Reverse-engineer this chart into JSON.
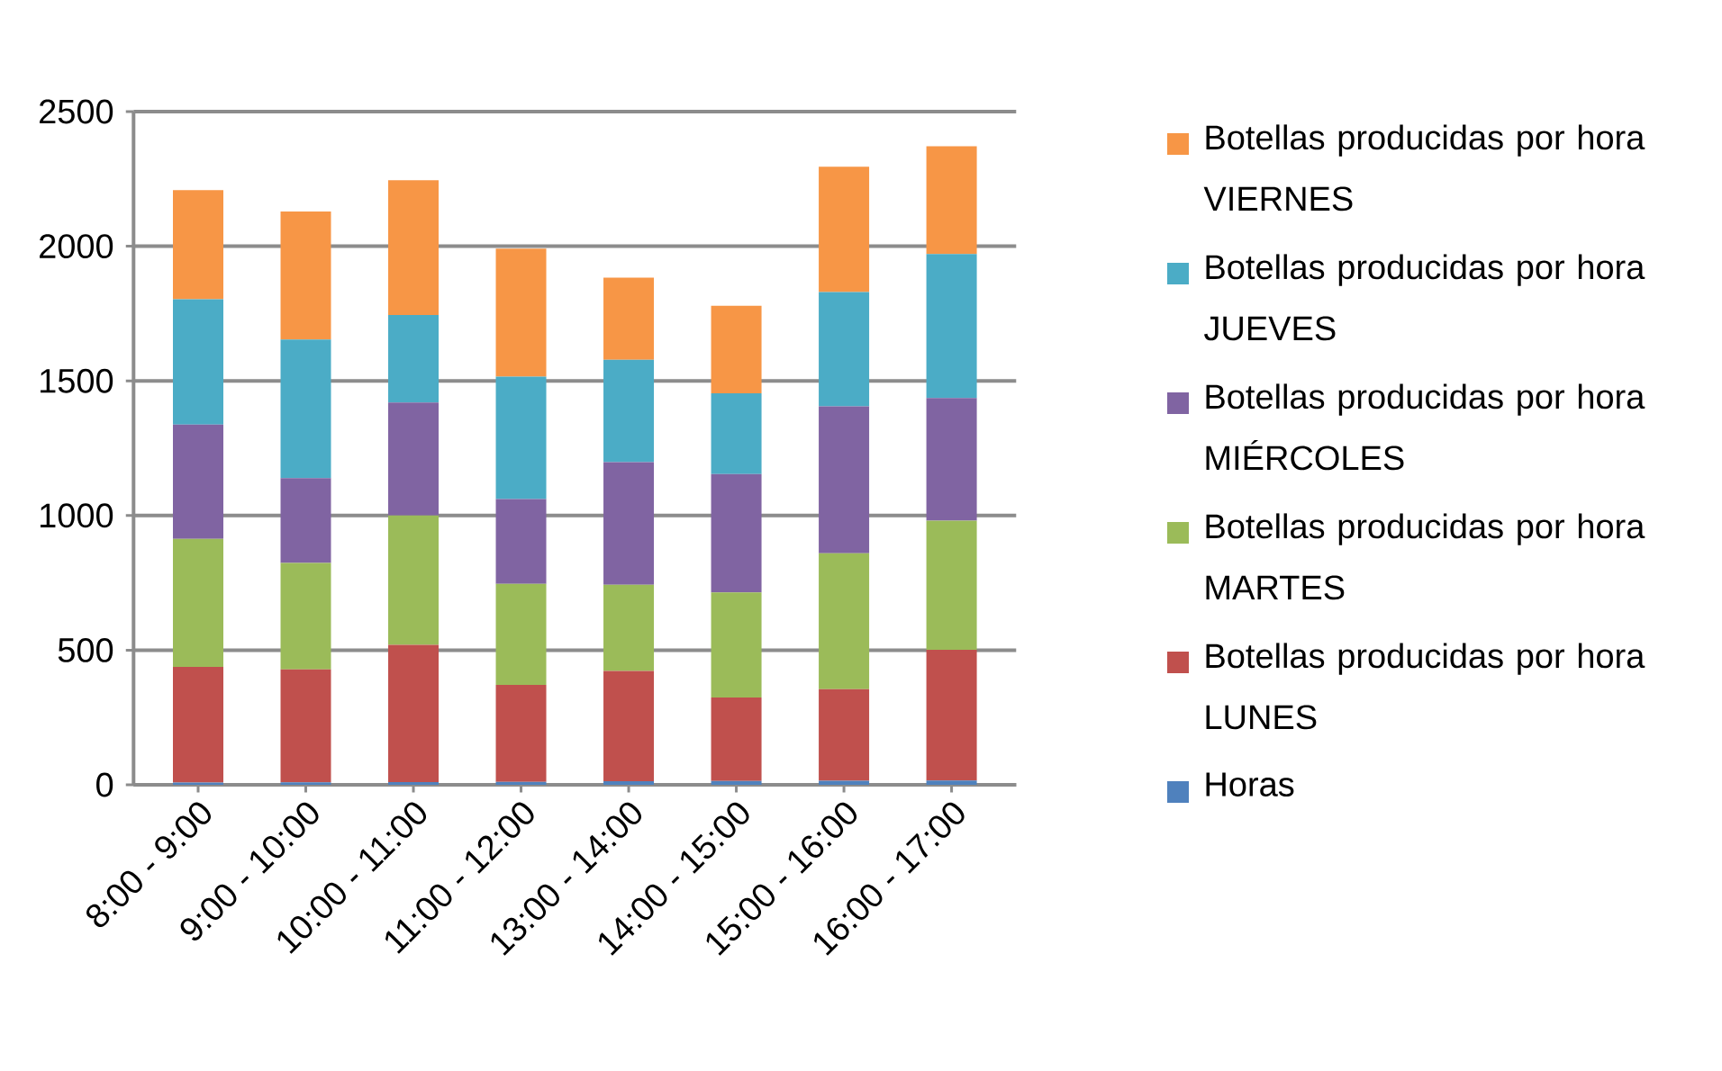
{
  "chart_data": {
    "type": "bar",
    "stacked": true,
    "categories": [
      "8:00 - 9:00",
      "9:00 - 10:00",
      "10:00 - 11:00",
      "11:00 - 12:00",
      "13:00 - 14:00",
      "14:00 - 15:00",
      "15:00 - 16:00",
      "16:00 - 17:00"
    ],
    "series": [
      {
        "name": "Horas",
        "color": "#4f81bd",
        "values": [
          8,
          9,
          10,
          11,
          13,
          14,
          15,
          16
        ]
      },
      {
        "name": "Botellas producidas por hora LUNES",
        "color": "#c0504d",
        "values": [
          430,
          420,
          510,
          360,
          410,
          310,
          340,
          485
        ]
      },
      {
        "name": "Botellas producidas por hora MARTES",
        "color": "#9bbb59",
        "values": [
          475,
          395,
          480,
          375,
          320,
          390,
          505,
          480
        ]
      },
      {
        "name": "Botellas producidas por hora MIÉRCOLES",
        "color": "#8064a2",
        "values": [
          425,
          315,
          420,
          315,
          455,
          440,
          545,
          455
        ]
      },
      {
        "name": "Botellas producidas por hora JUEVES",
        "color": "#4bacc6",
        "values": [
          465,
          515,
          325,
          455,
          380,
          300,
          425,
          535
        ]
      },
      {
        "name": "Botellas producidas por hora VIERNES",
        "color": "#f79646",
        "values": [
          405,
          475,
          500,
          475,
          305,
          325,
          465,
          400
        ]
      }
    ],
    "ylim": [
      0,
      2500
    ],
    "yticks": [
      0,
      500,
      1000,
      1500,
      2000,
      2500
    ],
    "grid": "y",
    "legend": "right"
  }
}
